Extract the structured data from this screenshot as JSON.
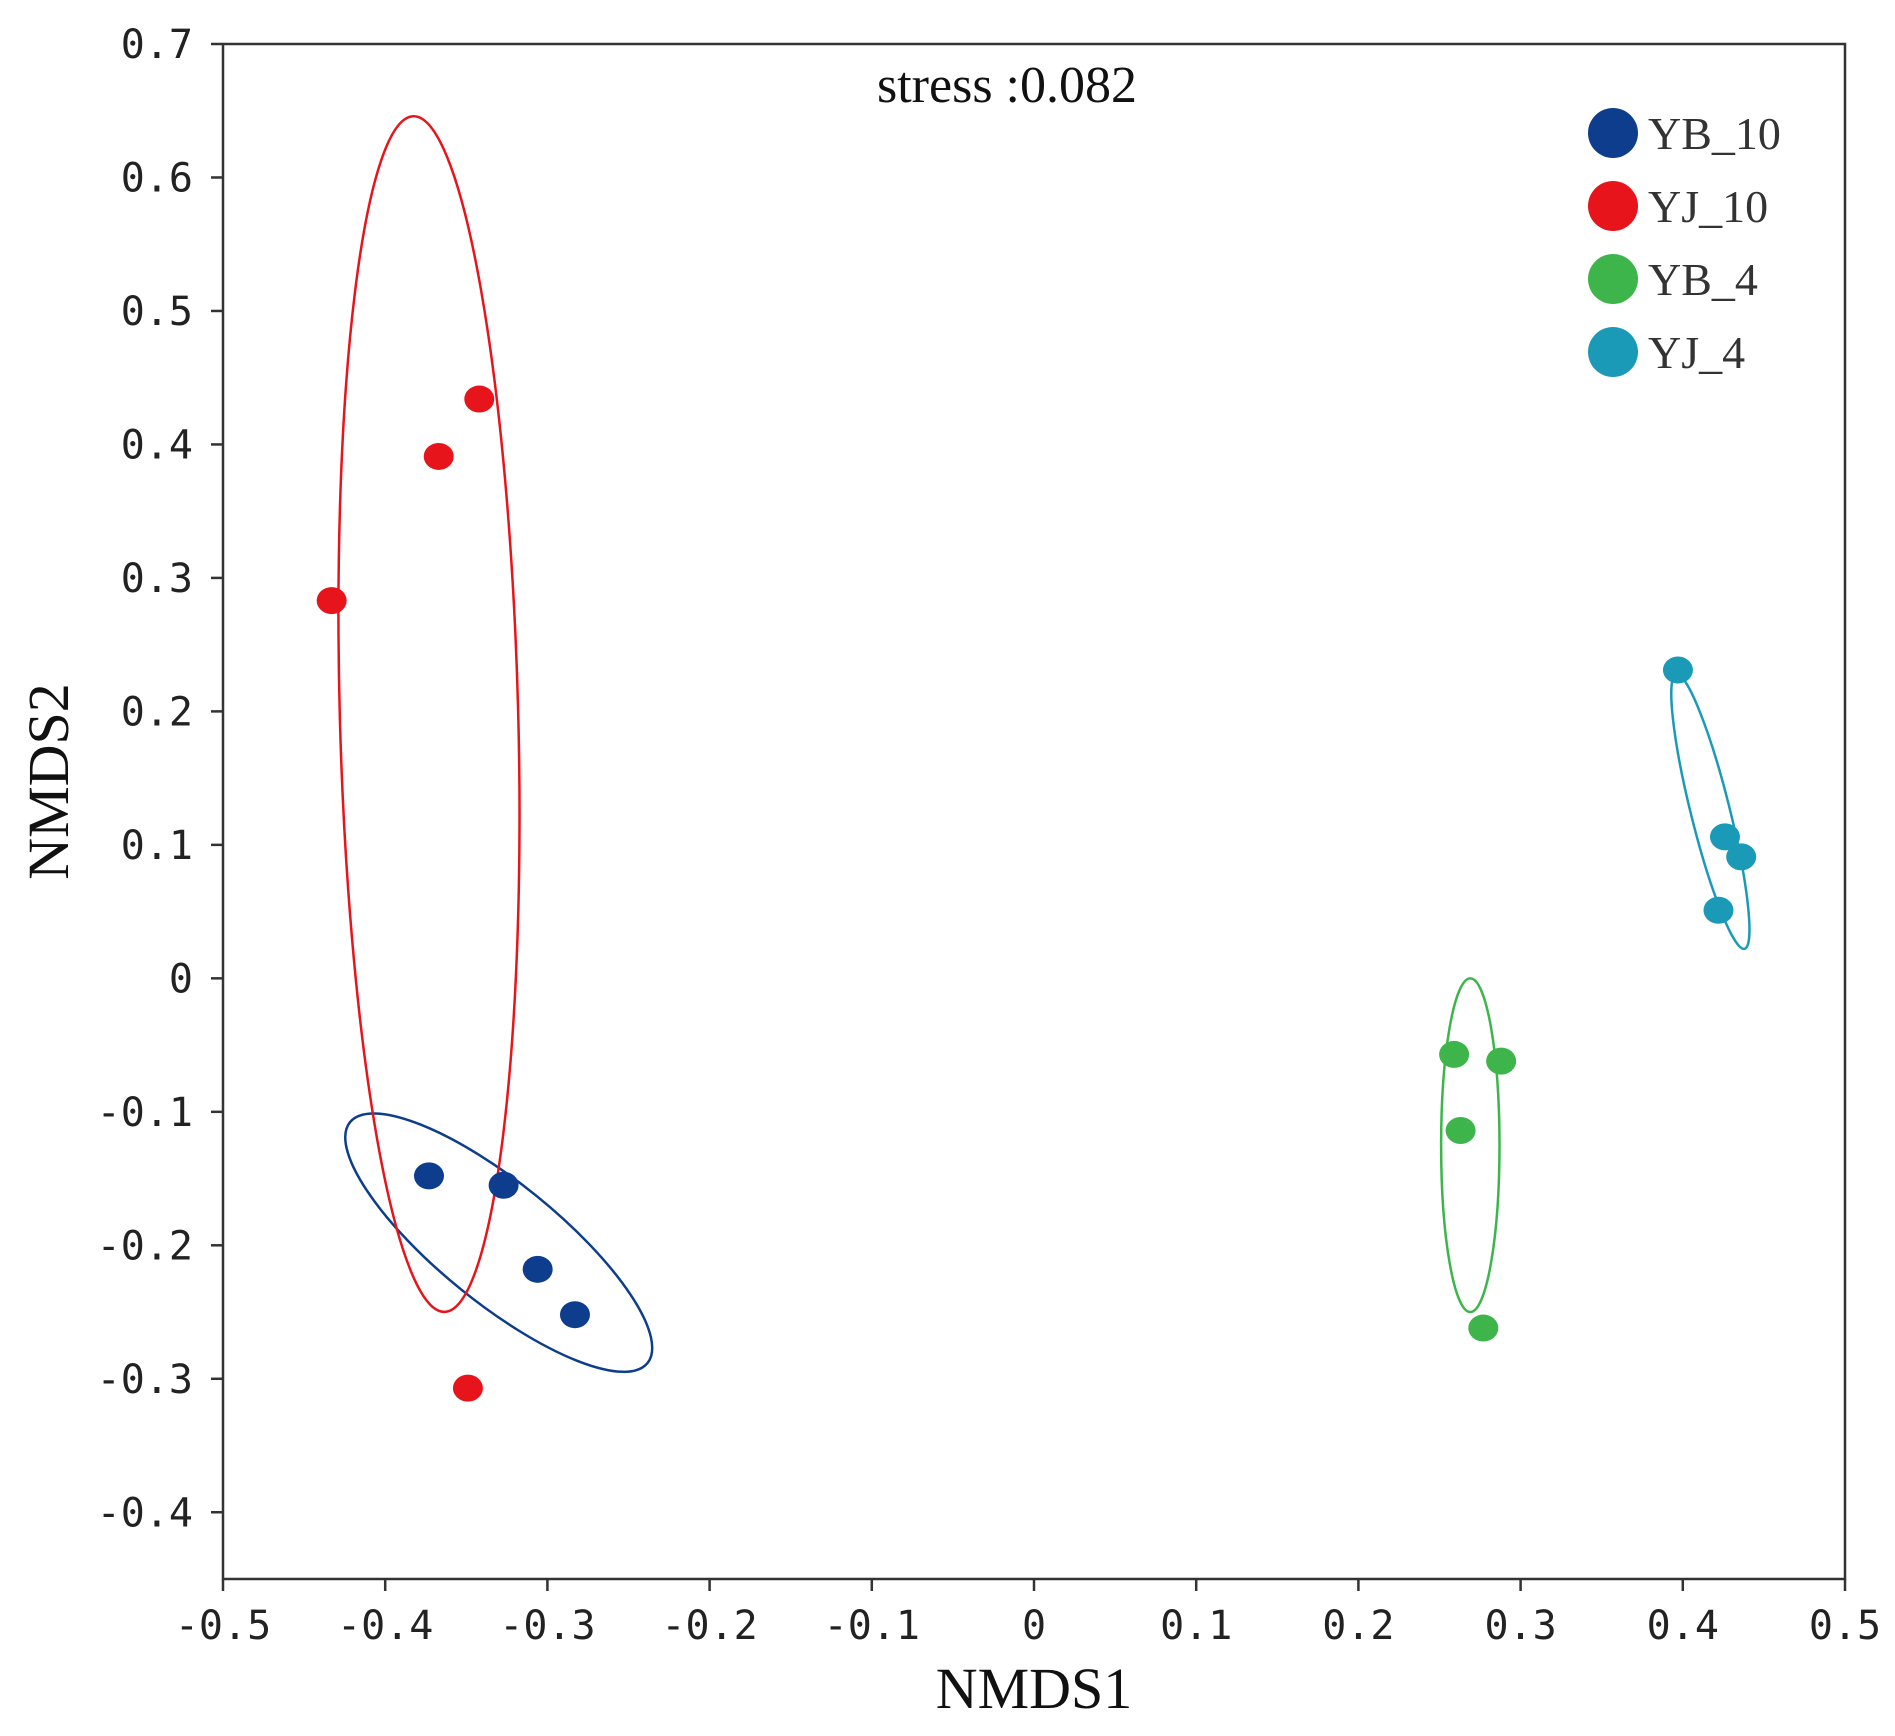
{
  "chart_data": {
    "type": "scatter",
    "title": "",
    "annotation": "stress :0.082",
    "xlabel": "NMDS1",
    "ylabel": "NMDS2",
    "xlim": [
      -0.5,
      0.5
    ],
    "ylim": [
      -0.45,
      0.7
    ],
    "xticks": [
      -0.5,
      -0.4,
      -0.3,
      -0.2,
      -0.1,
      0,
      0.1,
      0.2,
      0.3,
      0.4,
      0.5
    ],
    "yticks": [
      -0.4,
      -0.3,
      -0.2,
      -0.1,
      0,
      0.1,
      0.2,
      0.3,
      0.4,
      0.5,
      0.6,
      0.7
    ],
    "xtick_labels": [
      "-0.5",
      "-0.4",
      "-0.3",
      "-0.2",
      "-0.1",
      "0",
      "0.1",
      "0.2",
      "0.3",
      "0.4",
      "0.5"
    ],
    "ytick_labels": [
      "-0.4",
      "-0.3",
      "-0.2",
      "-0.1",
      "0",
      "0.1",
      "0.2",
      "0.3",
      "0.4",
      "0.5",
      "0.6",
      "0.7"
    ],
    "grid": false,
    "legend_position": "top-right",
    "series": [
      {
        "name": "YB_10",
        "color": "#0d3d8c",
        "points": [
          [
            -0.373,
            -0.148
          ],
          [
            -0.327,
            -0.155
          ],
          [
            -0.306,
            -0.218
          ],
          [
            -0.283,
            -0.252
          ]
        ],
        "ellipse": {
          "cx": -0.33,
          "cy": -0.198,
          "rx": 0.118,
          "ry": 0.045,
          "angle_deg": 39
        }
      },
      {
        "name": "YJ_10",
        "color": "#e8141b",
        "points": [
          [
            -0.433,
            0.283
          ],
          [
            -0.367,
            0.391
          ],
          [
            -0.342,
            0.434
          ],
          [
            -0.349,
            -0.307
          ]
        ],
        "ellipse": {
          "cx": -0.373,
          "cy": 0.198,
          "rx": 0.055,
          "ry": 0.448,
          "angle_deg": -1.5
        }
      },
      {
        "name": "YB_4",
        "color": "#3db54a",
        "points": [
          [
            0.259,
            -0.057
          ],
          [
            0.288,
            -0.062
          ],
          [
            0.263,
            -0.114
          ],
          [
            0.277,
            -0.262
          ]
        ],
        "ellipse": {
          "cx": 0.269,
          "cy": -0.125,
          "rx": 0.018,
          "ry": 0.125,
          "angle_deg": 0
        }
      },
      {
        "name": "YJ_4",
        "color": "#1b9ab8",
        "points": [
          [
            0.397,
            0.231
          ],
          [
            0.426,
            0.106
          ],
          [
            0.436,
            0.091
          ],
          [
            0.422,
            0.051
          ]
        ],
        "ellipse": {
          "cx": 0.417,
          "cy": 0.125,
          "rx": 0.012,
          "ry": 0.106,
          "angle_deg": -14
        }
      }
    ]
  }
}
